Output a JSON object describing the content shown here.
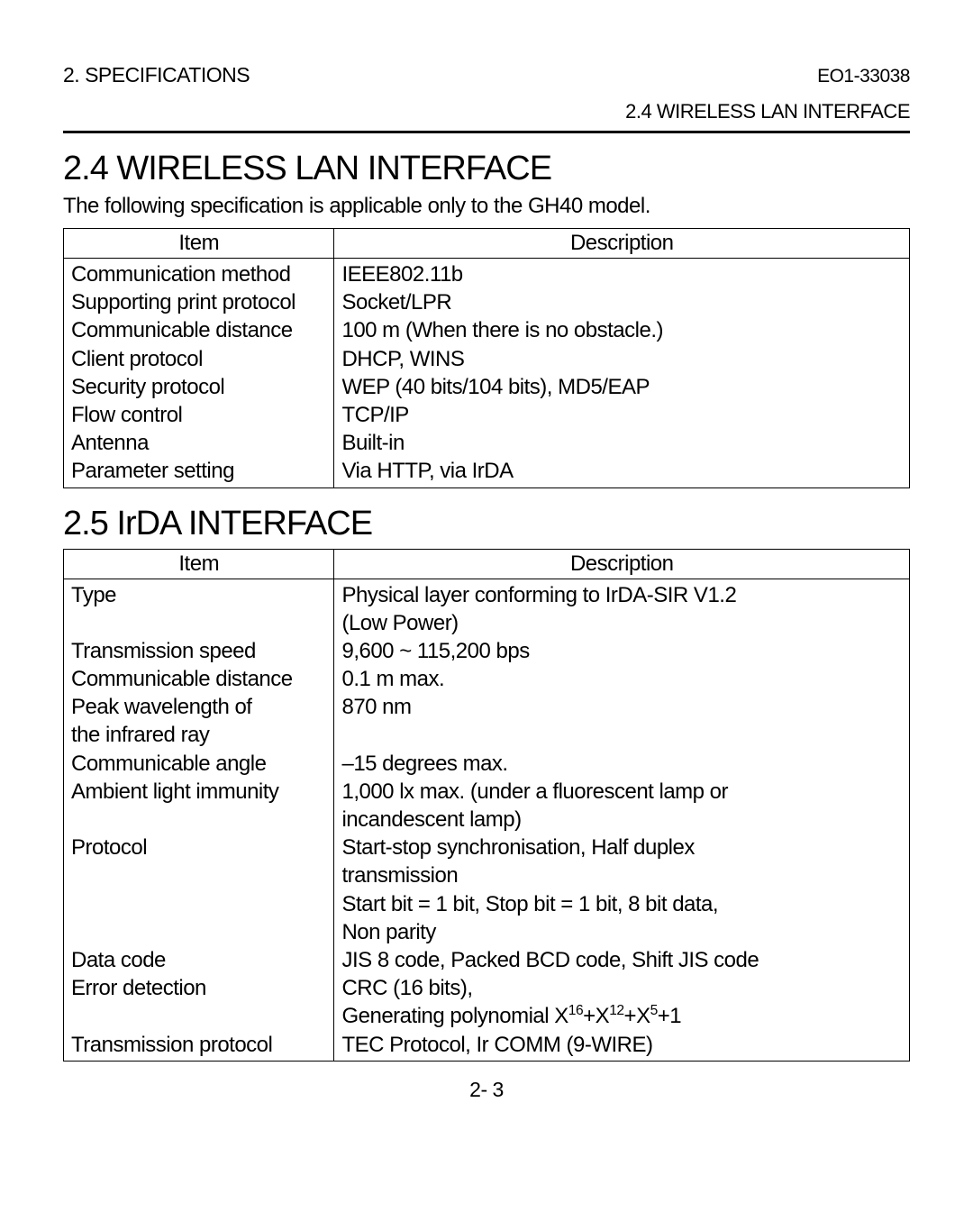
{
  "header": {
    "chapter": "2. SPECIFICATIONS",
    "doc_id": "EO1-33038",
    "subsection": "2.4 WIRELESS LAN INTERFACE"
  },
  "section24": {
    "title": "2.4 WIRELESS LAN INTERFACE",
    "intro": "The following specification is applicable only to the GH40 model.",
    "columns": [
      "Item",
      "Description"
    ],
    "rows": [
      {
        "item": "Communication method",
        "desc": "IEEE802.11b"
      },
      {
        "item": "Supporting print protocol",
        "desc": "Socket/LPR"
      },
      {
        "item": "Communicable distance",
        "desc": "100 m (When there is no obstacle.)"
      },
      {
        "item": "Client protocol",
        "desc": "DHCP, WINS"
      },
      {
        "item": "Security protocol",
        "desc": "WEP (40 bits/104 bits), MD5/EAP"
      },
      {
        "item": "Flow control",
        "desc": "TCP/IP"
      },
      {
        "item": "Antenna",
        "desc": "Built-in"
      },
      {
        "item": "Parameter setting",
        "desc": "Via HTTP, via IrDA"
      }
    ]
  },
  "section25": {
    "title": "2.5 IrDA INTERFACE",
    "columns": [
      "Item",
      "Description"
    ],
    "rows": [
      {
        "item_lines": [
          "Type"
        ],
        "desc_lines": [
          "Physical layer conforming to IrDA-SIR V1.2",
          "(Low Power)"
        ]
      },
      {
        "item_lines": [
          "Transmission speed"
        ],
        "desc_lines": [
          "9,600 ~ 115,200 bps"
        ]
      },
      {
        "item_lines": [
          "Communicable distance"
        ],
        "desc_lines": [
          "0.1 m max."
        ]
      },
      {
        "item_lines": [
          "Peak wavelength of",
          "the infrared ray"
        ],
        "desc_lines": [
          "870 nm"
        ]
      },
      {
        "item_lines": [
          "Communicable angle"
        ],
        "desc_lines": [
          "–15 degrees max."
        ]
      },
      {
        "item_lines": [
          "Ambient light immunity"
        ],
        "desc_lines": [
          "1,000 lx max. (under a fluorescent lamp or",
          "incandescent lamp)"
        ]
      },
      {
        "item_lines": [
          "Protocol"
        ],
        "desc_lines": [
          "Start-stop synchronisation, Half duplex",
          "transmission",
          "Start bit = 1 bit, Stop bit = 1 bit, 8 bit data,",
          "Non parity"
        ]
      },
      {
        "item_lines": [
          "Data code"
        ],
        "desc_lines": [
          "JIS 8 code, Packed BCD code, Shift JIS code"
        ]
      },
      {
        "item_lines": [
          "Error detection"
        ],
        "desc_lines": [
          "CRC (16 bits),"
        ],
        "desc_html_last": "Generating polynomial X<sup>16</sup>+X<sup>12</sup>+X<sup>5</sup>+1"
      },
      {
        "item_lines": [
          "Transmission protocol"
        ],
        "desc_lines": [
          "TEC Protocol, Ir COMM (9-WIRE)"
        ]
      }
    ]
  },
  "footer": {
    "page": "2- 3"
  }
}
